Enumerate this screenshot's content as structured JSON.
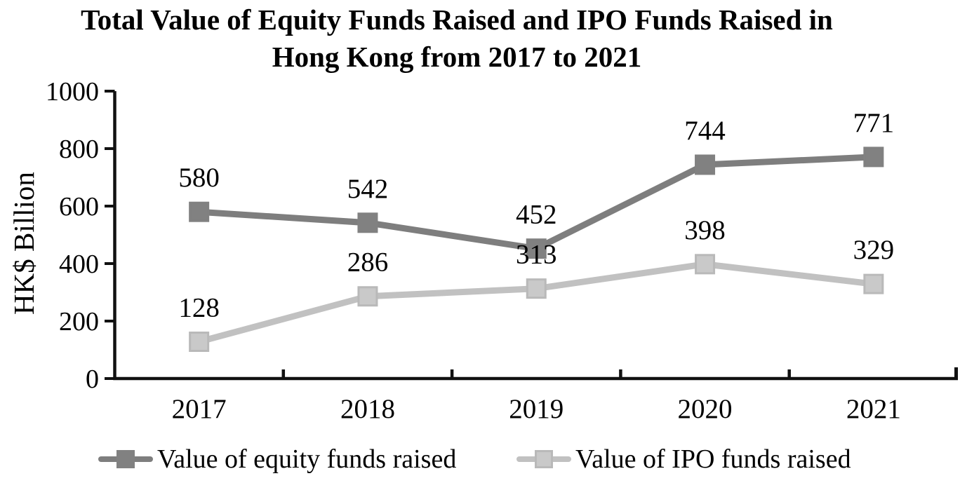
{
  "title": {
    "line1": "Total Value of Equity Funds Raised and IPO Funds Raised in",
    "line2": "Hong Kong from 2017 to 2021"
  },
  "chart_data": {
    "type": "line",
    "title": "Total Value of Equity Funds Raised and IPO Funds Raised in Hong Kong from 2017 to 2021",
    "xlabel": "",
    "ylabel": "HK$ Billion",
    "categories": [
      "2017",
      "2018",
      "2019",
      "2020",
      "2021"
    ],
    "series": [
      {
        "name": "Value of equity funds raised",
        "values": [
          580,
          542,
          452,
          744,
          771
        ],
        "marker": "square",
        "line_color": "#7E7E7E",
        "marker_fill": "#818181",
        "marker_border": "#818181"
      },
      {
        "name": "Value of IPO funds raised",
        "values": [
          128,
          286,
          313,
          398,
          329
        ],
        "marker": "square",
        "line_color": "#C1C1C1",
        "marker_fill": "#C9C9C9",
        "marker_border": "#B9B9B9"
      }
    ],
    "ylim": [
      0,
      1000
    ],
    "yticks": [
      0,
      200,
      400,
      600,
      800,
      1000
    ],
    "grid": false,
    "data_labels": true,
    "legend_position": "bottom",
    "axis_color": "#111111",
    "text_color": "#000000"
  }
}
